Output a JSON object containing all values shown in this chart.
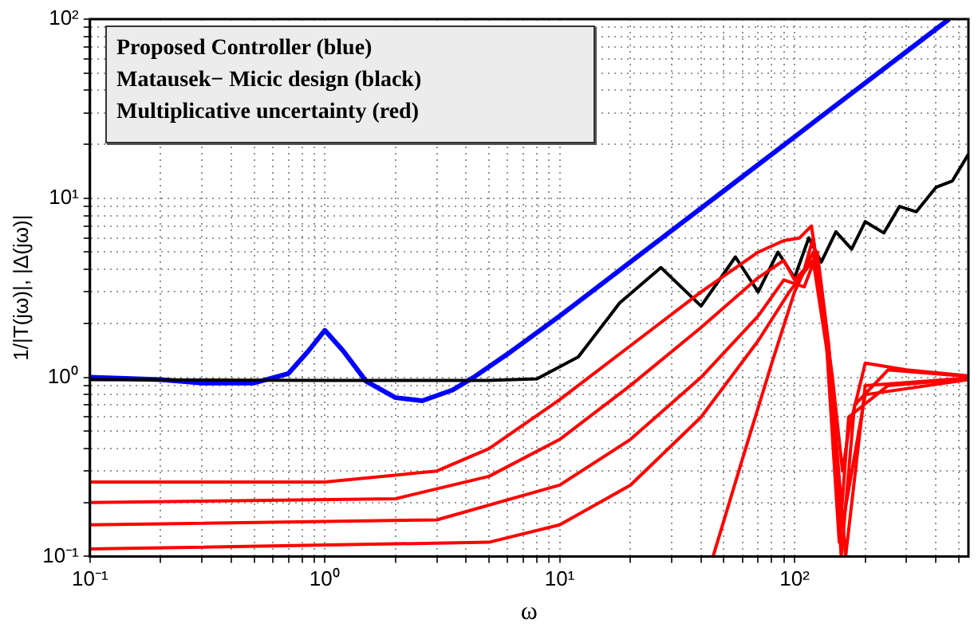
{
  "chart_data": {
    "type": "line",
    "xlabel": "ω",
    "ylabel": "1/|T(jω)|, |Δ(jω)|",
    "annotations": [
      "Proposed Controller (blue)",
      "Matausek− Micic design (black)",
      "Multiplicative uncertainty (red)"
    ],
    "log": "xy",
    "grid": true,
    "legend": false,
    "marker": "none",
    "line_style": "solid",
    "xlim": [
      0.1,
      550
    ],
    "ylim": [
      0.1,
      100
    ],
    "xticks": [
      {
        "value": 0.1,
        "label": "10⁻¹"
      },
      {
        "value": 0.2,
        "label": null
      },
      {
        "value": 0.3,
        "label": null
      },
      {
        "value": 0.4,
        "label": null
      },
      {
        "value": 0.5,
        "label": null
      },
      {
        "value": 0.6,
        "label": null
      },
      {
        "value": 0.7,
        "label": null
      },
      {
        "value": 0.8,
        "label": null
      },
      {
        "value": 0.9,
        "label": null
      },
      {
        "value": 1,
        "label": "10⁰"
      },
      {
        "value": 2,
        "label": null
      },
      {
        "value": 3,
        "label": null
      },
      {
        "value": 4,
        "label": null
      },
      {
        "value": 5,
        "label": null
      },
      {
        "value": 6,
        "label": null
      },
      {
        "value": 7,
        "label": null
      },
      {
        "value": 8,
        "label": null
      },
      {
        "value": 9,
        "label": null
      },
      {
        "value": 10,
        "label": "10¹"
      },
      {
        "value": 20,
        "label": null
      },
      {
        "value": 30,
        "label": null
      },
      {
        "value": 40,
        "label": null
      },
      {
        "value": 50,
        "label": null
      },
      {
        "value": 60,
        "label": null
      },
      {
        "value": 70,
        "label": null
      },
      {
        "value": 80,
        "label": null
      },
      {
        "value": 90,
        "label": null
      },
      {
        "value": 100,
        "label": "10²"
      },
      {
        "value": 200,
        "label": null
      },
      {
        "value": 300,
        "label": null
      },
      {
        "value": 400,
        "label": null
      },
      {
        "value": 500,
        "label": null
      }
    ],
    "yticks": [
      {
        "value": 0.1,
        "label": "10⁻¹"
      },
      {
        "value": 0.2,
        "label": null
      },
      {
        "value": 0.3,
        "label": null
      },
      {
        "value": 0.4,
        "label": null
      },
      {
        "value": 0.5,
        "label": null
      },
      {
        "value": 0.6,
        "label": null
      },
      {
        "value": 0.7,
        "label": null
      },
      {
        "value": 0.8,
        "label": null
      },
      {
        "value": 0.9,
        "label": null
      },
      {
        "value": 1,
        "label": "10⁰"
      },
      {
        "value": 2,
        "label": null
      },
      {
        "value": 3,
        "label": null
      },
      {
        "value": 4,
        "label": null
      },
      {
        "value": 5,
        "label": null
      },
      {
        "value": 6,
        "label": null
      },
      {
        "value": 7,
        "label": null
      },
      {
        "value": 8,
        "label": null
      },
      {
        "value": 9,
        "label": null
      },
      {
        "value": 10,
        "label": "10¹"
      },
      {
        "value": 20,
        "label": null
      },
      {
        "value": 30,
        "label": null
      },
      {
        "value": 40,
        "label": null
      },
      {
        "value": 50,
        "label": null
      },
      {
        "value": 60,
        "label": null
      },
      {
        "value": 70,
        "label": null
      },
      {
        "value": 80,
        "label": null
      },
      {
        "value": 90,
        "label": null
      },
      {
        "value": 100,
        "label": "10²"
      }
    ],
    "series": [
      {
        "color": "#ff0000",
        "x": [
          0.1,
          1,
          3,
          5,
          10,
          20,
          40,
          70,
          90,
          105,
          118,
          130,
          145,
          160,
          170,
          200,
          300,
          550
        ],
        "values": [
          0.26,
          0.26,
          0.3,
          0.4,
          0.75,
          1.5,
          3,
          5,
          5.8,
          6,
          7,
          3,
          1,
          0.3,
          0.5,
          1.2,
          1.1,
          1.02
        ]
      },
      {
        "color": "#ff0000",
        "x": [
          0.1,
          2,
          5,
          10,
          20,
          40,
          70,
          90,
          100,
          110,
          120,
          135,
          155,
          170,
          250,
          550
        ],
        "values": [
          0.2,
          0.21,
          0.28,
          0.45,
          0.9,
          1.9,
          3.6,
          4.5,
          3.5,
          4,
          6,
          2,
          0.12,
          0.6,
          0.9,
          0.98
        ]
      },
      {
        "color": "#ff0000",
        "x": [
          0.1,
          3,
          10,
          20,
          40,
          70,
          90,
          110,
          125,
          140,
          158,
          180,
          250,
          550
        ],
        "values": [
          0.15,
          0.16,
          0.25,
          0.45,
          1,
          2.2,
          3.5,
          3.2,
          5,
          1.5,
          0.1,
          0.7,
          1.1,
          1.01
        ]
      },
      {
        "color": "#ff0000",
        "x": [
          0.1,
          5,
          10,
          20,
          40,
          70,
          95,
          120,
          140,
          160,
          200,
          550
        ],
        "values": [
          0.11,
          0.12,
          0.15,
          0.25,
          0.6,
          1.6,
          3,
          4.5,
          1.2,
          0.15,
          0.8,
          0.97
        ]
      },
      {
        "color": "#ff0000",
        "x": [
          45,
          60,
          80,
          100,
          120,
          140,
          165,
          200,
          550
        ],
        "values": [
          0.1,
          0.35,
          1.2,
          3,
          5,
          1.4,
          0.1,
          0.9,
          0.99
        ]
      },
      {
        "color": "#000000",
        "x": [
          0.1,
          1,
          5,
          8,
          12,
          18,
          27,
          40,
          56,
          70,
          85,
          100,
          115,
          130,
          150,
          175,
          200,
          240,
          280,
          330,
          400,
          470,
          550
        ],
        "values": [
          0.97,
          0.96,
          0.96,
          0.98,
          1.3,
          2.6,
          4.1,
          2.5,
          4.7,
          3,
          5,
          3.6,
          6,
          4.4,
          6.5,
          5.2,
          7.4,
          6.4,
          9,
          8.4,
          11.5,
          12.5,
          17.6
        ]
      },
      {
        "color": "#0000ff",
        "x": [
          0.1,
          0.2,
          0.3,
          0.5,
          0.7,
          0.85,
          1,
          1.2,
          1.5,
          2,
          2.6,
          3.5,
          4.3,
          6,
          10,
          20,
          50,
          100,
          200,
          455
        ],
        "values": [
          1,
          0.97,
          0.93,
          0.93,
          1.05,
          1.4,
          1.83,
          1.4,
          0.95,
          0.77,
          0.74,
          0.85,
          1,
          1.35,
          2.2,
          4.4,
          11,
          22,
          44,
          100
        ]
      }
    ]
  }
}
